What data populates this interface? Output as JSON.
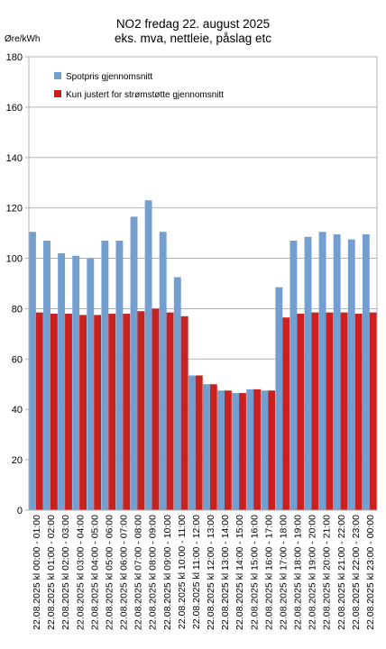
{
  "chart_data": {
    "type": "bar",
    "title_lines": [
      "NO2 fredag 22. august 2025",
      "eks. mva, nettleie, påslag etc"
    ],
    "ylabel": "Øre/kWh",
    "ylim": [
      0,
      180
    ],
    "yticks": [
      0,
      20,
      40,
      60,
      80,
      100,
      120,
      140,
      160,
      180
    ],
    "grid": true,
    "legend_position": "top-left",
    "categories": [
      "22.08.2025 kl 00:00 - 01:00",
      "22.08.2025 kl 01:00 - 02:00",
      "22.08.2025 kl 02:00 - 03:00",
      "22.08.2025 kl 03:00 - 04:00",
      "22.08.2025 kl 04:00 - 05:00",
      "22.08.2025 kl 05:00 - 06:00",
      "22.08.2025 kl 06:00 - 07:00",
      "22.08.2025 kl 07:00 - 08:00",
      "22.08.2025 kl 08:00 - 09:00",
      "22.08.2025 kl 09:00 - 10:00",
      "22.08.2025 kl 10:00 - 11:00",
      "22.08.2025 kl 11:00 - 12:00",
      "22.08.2025 kl 12:00 - 13:00",
      "22.08.2025 kl 13:00 - 14:00",
      "22.08.2025 kl 14:00 - 15:00",
      "22.08.2025 kl 15:00 - 16:00",
      "22.08.2025 kl 16:00 - 17:00",
      "22.08.2025 kl 17:00 - 18:00",
      "22.08.2025 kl 18:00 - 19:00",
      "22.08.2025 kl 19:00 - 20:00",
      "22.08.2025 kl 20:00 - 21:00",
      "22.08.2025 kl 21:00 - 22:00",
      "22.08.2025 kl 22:00 - 23:00",
      "22.08.2025 kl 23:00 - 00:00"
    ],
    "series": [
      {
        "name": "Spotpris gjennomsnitt",
        "color": "#729fcf",
        "values": [
          110.5,
          107,
          102,
          101,
          100,
          107,
          107,
          116.5,
          123,
          110.5,
          92.5,
          53.5,
          50,
          47.5,
          46.5,
          48,
          47.5,
          88.5,
          107,
          108.5,
          110.5,
          109.5,
          107.5,
          109.5
        ]
      },
      {
        "name": "Kun justert for strømstøtte gjennomsnitt",
        "color": "#c9211e",
        "values": [
          78.5,
          78,
          78,
          77.5,
          77.5,
          78,
          78,
          79,
          80,
          78.5,
          77,
          53.5,
          50,
          47.5,
          46.5,
          48,
          47.5,
          76.5,
          78,
          78.5,
          78.5,
          78.5,
          78,
          78.5
        ]
      }
    ]
  }
}
